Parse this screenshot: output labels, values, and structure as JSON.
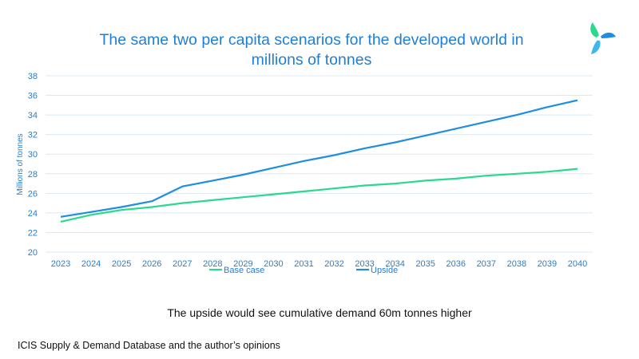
{
  "title": "The same two per capita scenarios for the developed world in millions of tonnes",
  "subtitle": "The upside would see cumulative demand 60m tonnes higher",
  "source": "ICIS Supply & Demand Database and the author’s opinions",
  "colors": {
    "title": "#1f7fd6",
    "base_case": "#2ad88e",
    "upside": "#1f8de0",
    "grid": "#dbe8f5"
  },
  "chart_data": {
    "type": "line",
    "title": "The same two per capita scenarios for the developed world in millions of tonnes",
    "xlabel": "",
    "ylabel": "Millions of tonnes",
    "categories": [
      "2023",
      "2024",
      "2025",
      "2026",
      "2027",
      "2028",
      "2029",
      "2030",
      "2031",
      "2032",
      "2033",
      "2034",
      "2035",
      "2036",
      "2037",
      "2038",
      "2039",
      "2040"
    ],
    "ylim": [
      20,
      38
    ],
    "yticks": [
      20,
      22,
      24,
      26,
      28,
      30,
      32,
      34,
      36,
      38
    ],
    "grid": true,
    "legend_position": "bottom",
    "series": [
      {
        "name": "Base case",
        "color": "#2ad88e",
        "values": [
          23.1,
          23.8,
          24.3,
          24.6,
          25.0,
          25.3,
          25.6,
          25.9,
          26.2,
          26.5,
          26.8,
          27.0,
          27.3,
          27.5,
          27.8,
          28.0,
          28.2,
          28.5
        ]
      },
      {
        "name": "Upside",
        "color": "#1f8de0",
        "values": [
          23.6,
          24.1,
          24.6,
          25.2,
          26.7,
          27.3,
          27.9,
          28.6,
          29.3,
          29.9,
          30.6,
          31.2,
          31.9,
          32.6,
          33.3,
          34.0,
          34.8,
          35.5
        ]
      }
    ]
  }
}
